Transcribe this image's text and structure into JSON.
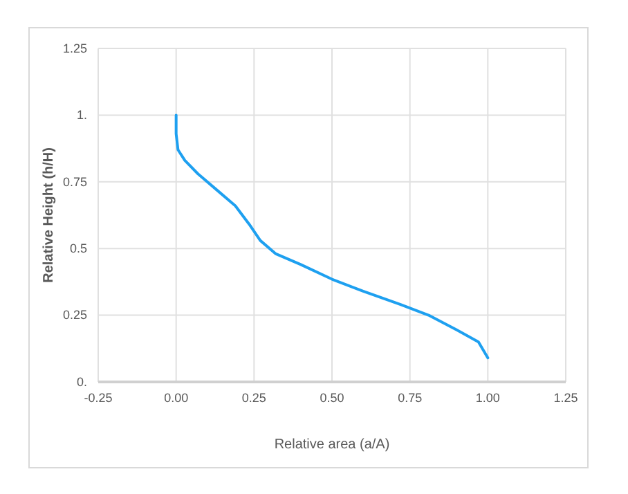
{
  "chart_data": {
    "type": "line",
    "xlabel": "Relative area (a/A)",
    "ylabel": "Relative Height (h/H)",
    "x": [
      0,
      0,
      0.006,
      0.028,
      0.07,
      0.13,
      0.19,
      0.235,
      0.27,
      0.32,
      0.4,
      0.5,
      0.6,
      0.72,
      0.81,
      0.9,
      0.97,
      1.0
    ],
    "series": [
      {
        "color": "#1ea0f0",
        "values": [
          1.0,
          0.93,
          0.87,
          0.83,
          0.78,
          0.72,
          0.66,
          0.59,
          0.53,
          0.48,
          0.44,
          0.385,
          0.34,
          0.29,
          0.25,
          0.195,
          0.15,
          0.09
        ]
      }
    ],
    "xlim": [
      -0.25,
      1.25
    ],
    "ylim": [
      0,
      1.25
    ],
    "xticks": [
      {
        "value": -0.25,
        "label": "-0.25"
      },
      {
        "value": 0,
        "label": "0.00"
      },
      0.25,
      {
        "value": 0.5,
        "label": "0.50"
      },
      0.75,
      {
        "value": 1,
        "label": "1.00"
      },
      1.25
    ],
    "yticks": [
      {
        "value": 0,
        "label": "0."
      },
      0.25,
      0.5,
      0.75,
      {
        "value": 1,
        "label": "1."
      },
      1.25
    ],
    "grid": true,
    "marker": "none",
    "line_style": "solid"
  }
}
